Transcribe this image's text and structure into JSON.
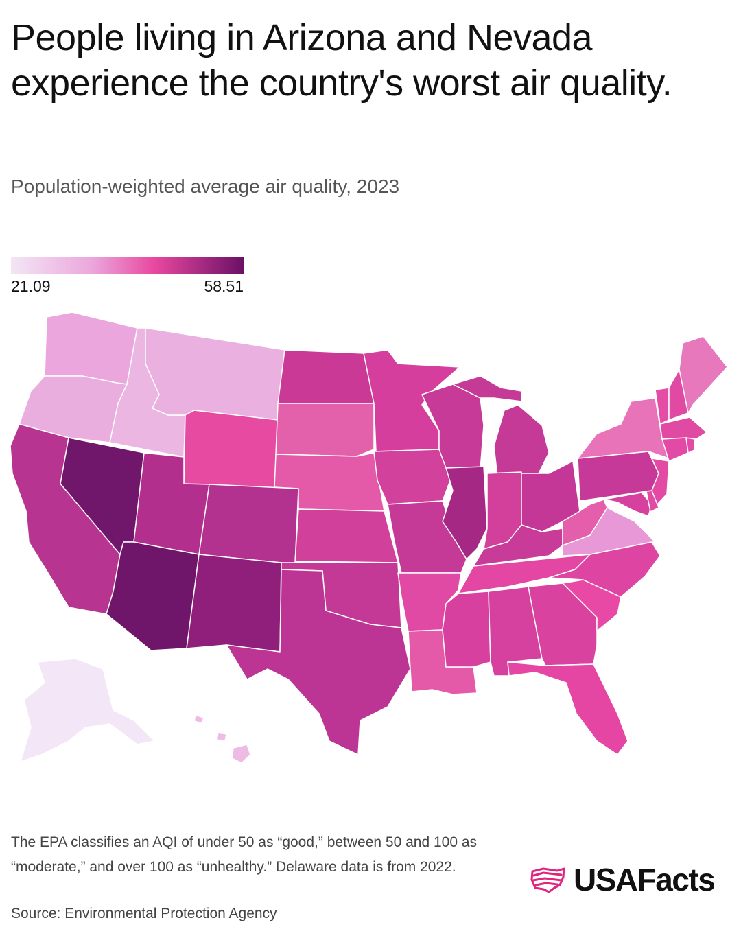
{
  "header": {
    "title": "People living in Arizona and Nevada experience the country's worst air quality.",
    "subtitle": "Population-weighted average air quality, 2023"
  },
  "legend": {
    "min_label": "21.09",
    "max_label": "58.51",
    "min_color": "#f3e6f6",
    "mid_light_color": "#eba6dc",
    "mid_color": "#e8479f",
    "max_color": "#6b1166"
  },
  "map": {
    "metric": "Population-weighted average AQI",
    "year": "2023",
    "states": [
      {
        "id": "WA",
        "color": "#eaa6dd"
      },
      {
        "id": "OR",
        "color": "#eaaede"
      },
      {
        "id": "ID",
        "color": "#ecb6e2"
      },
      {
        "id": "MT",
        "color": "#eab0df"
      },
      {
        "id": "WY",
        "color": "#e64aa1"
      },
      {
        "id": "CA",
        "color": "#b73490"
      },
      {
        "id": "NV",
        "color": "#70166b"
      },
      {
        "id": "UT",
        "color": "#b32f8e"
      },
      {
        "id": "AZ",
        "color": "#6f156a"
      },
      {
        "id": "CO",
        "color": "#b3318f"
      },
      {
        "id": "NM",
        "color": "#8f1f7b"
      },
      {
        "id": "ND",
        "color": "#cb3997"
      },
      {
        "id": "SD",
        "color": "#e361ab"
      },
      {
        "id": "NE",
        "color": "#e55aa8"
      },
      {
        "id": "KS",
        "color": "#d1409b"
      },
      {
        "id": "OK",
        "color": "#c43996"
      },
      {
        "id": "TX",
        "color": "#bc3594"
      },
      {
        "id": "MN",
        "color": "#d63e9e"
      },
      {
        "id": "IA",
        "color": "#d2419c"
      },
      {
        "id": "MO",
        "color": "#c63a97"
      },
      {
        "id": "AR",
        "color": "#e04aa4"
      },
      {
        "id": "LA",
        "color": "#e45aa9"
      },
      {
        "id": "WI",
        "color": "#c73a98"
      },
      {
        "id": "IL",
        "color": "#a52885"
      },
      {
        "id": "MI",
        "color": "#c53a97"
      },
      {
        "id": "IN",
        "color": "#d2409c"
      },
      {
        "id": "OH",
        "color": "#c53797"
      },
      {
        "id": "KY",
        "color": "#c83b98"
      },
      {
        "id": "TN",
        "color": "#e346a3"
      },
      {
        "id": "MS",
        "color": "#d8409f"
      },
      {
        "id": "AL",
        "color": "#d6409e"
      },
      {
        "id": "GA",
        "color": "#d9429f"
      },
      {
        "id": "FL",
        "color": "#e546a3"
      },
      {
        "id": "SC",
        "color": "#e849a4"
      },
      {
        "id": "NC",
        "color": "#de45a2"
      },
      {
        "id": "VA",
        "color": "#e898d6"
      },
      {
        "id": "WV",
        "color": "#e45eab"
      },
      {
        "id": "PA",
        "color": "#c73998"
      },
      {
        "id": "NY",
        "color": "#e873b8"
      },
      {
        "id": "VT",
        "color": "#e54ca5"
      },
      {
        "id": "NH",
        "color": "#e04aa3"
      },
      {
        "id": "ME",
        "color": "#e878bc"
      },
      {
        "id": "MA",
        "color": "#e04aa3"
      },
      {
        "id": "CT",
        "color": "#e34aa5"
      },
      {
        "id": "RI",
        "color": "#e34aa5"
      },
      {
        "id": "NJ",
        "color": "#e24aa4"
      },
      {
        "id": "DE",
        "color": "#e24aa4"
      },
      {
        "id": "MD",
        "color": "#d6409e"
      },
      {
        "id": "AK",
        "color": "#f3e6f6"
      },
      {
        "id": "HI",
        "color": "#eebbe4"
      }
    ]
  },
  "footer": {
    "note": "The EPA classifies an AQI of under 50 as “good,” between 50 and 100 as “moderate,” and over 100 as “unhealthy.” Delaware data is from 2022.",
    "source": "Source: Environmental Protection Agency",
    "brand": "USAFacts",
    "brand_color": "#e0247f"
  }
}
